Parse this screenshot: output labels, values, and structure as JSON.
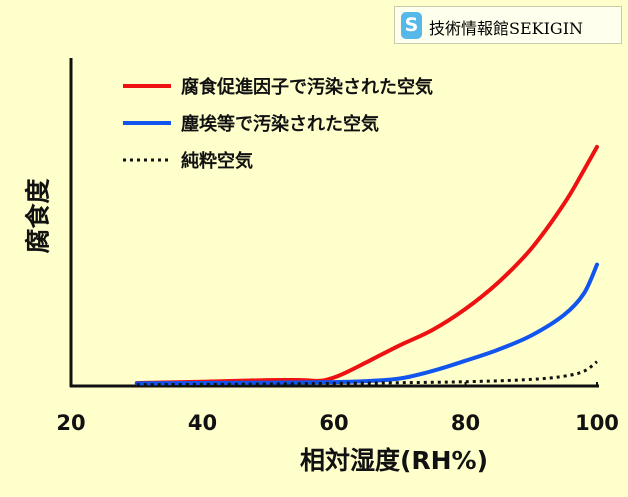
{
  "badge": {
    "icon": "s-logo-icon",
    "text": "技術情報館SEKIGIN"
  },
  "chart_data": {
    "type": "line",
    "title": "",
    "xlabel": "相対湿度(RH%)",
    "ylabel": "腐食度",
    "xlim": [
      20,
      100
    ],
    "ylim": [
      0,
      100
    ],
    "x_ticks": [
      "20",
      "40",
      "60",
      "80",
      "100"
    ],
    "y_ticks": [],
    "grid": false,
    "legend_position": "top-left",
    "series": [
      {
        "name": "腐食促進因子で汚染された空気",
        "color": "#ee1111",
        "line_style": "solid",
        "points": [
          [
            30,
            0.9
          ],
          [
            40,
            1.3
          ],
          [
            50,
            1.8
          ],
          [
            55,
            1.8
          ],
          [
            58,
            1.6
          ],
          [
            60,
            2.6
          ],
          [
            62,
            4.3
          ],
          [
            65,
            7.3
          ],
          [
            70,
            12.4
          ],
          [
            75,
            17.1
          ],
          [
            80,
            23.5
          ],
          [
            85,
            31.6
          ],
          [
            90,
            41.9
          ],
          [
            95,
            55.6
          ],
          [
            98,
            65.8
          ],
          [
            100,
            72.9
          ]
        ]
      },
      {
        "name": "塵埃等で汚染された空気",
        "color": "#1155ee",
        "line_style": "solid",
        "points": [
          [
            30,
            0.8
          ],
          [
            40,
            0.9
          ],
          [
            50,
            1.0
          ],
          [
            60,
            1.2
          ],
          [
            65,
            1.5
          ],
          [
            70,
            2.3
          ],
          [
            75,
            4.6
          ],
          [
            80,
            7.7
          ],
          [
            85,
            11.1
          ],
          [
            90,
            15.4
          ],
          [
            95,
            21.7
          ],
          [
            98,
            28.2
          ],
          [
            100,
            37.0
          ]
        ]
      },
      {
        "name": "純粋空気",
        "color": "#111111",
        "line_style": "dotted",
        "points": [
          [
            30,
            0.4
          ],
          [
            40,
            0.5
          ],
          [
            50,
            0.6
          ],
          [
            60,
            0.8
          ],
          [
            70,
            1.0
          ],
          [
            80,
            1.3
          ],
          [
            90,
            2.0
          ],
          [
            95,
            3.0
          ],
          [
            98,
            4.5
          ],
          [
            100,
            7.4
          ]
        ]
      }
    ]
  }
}
